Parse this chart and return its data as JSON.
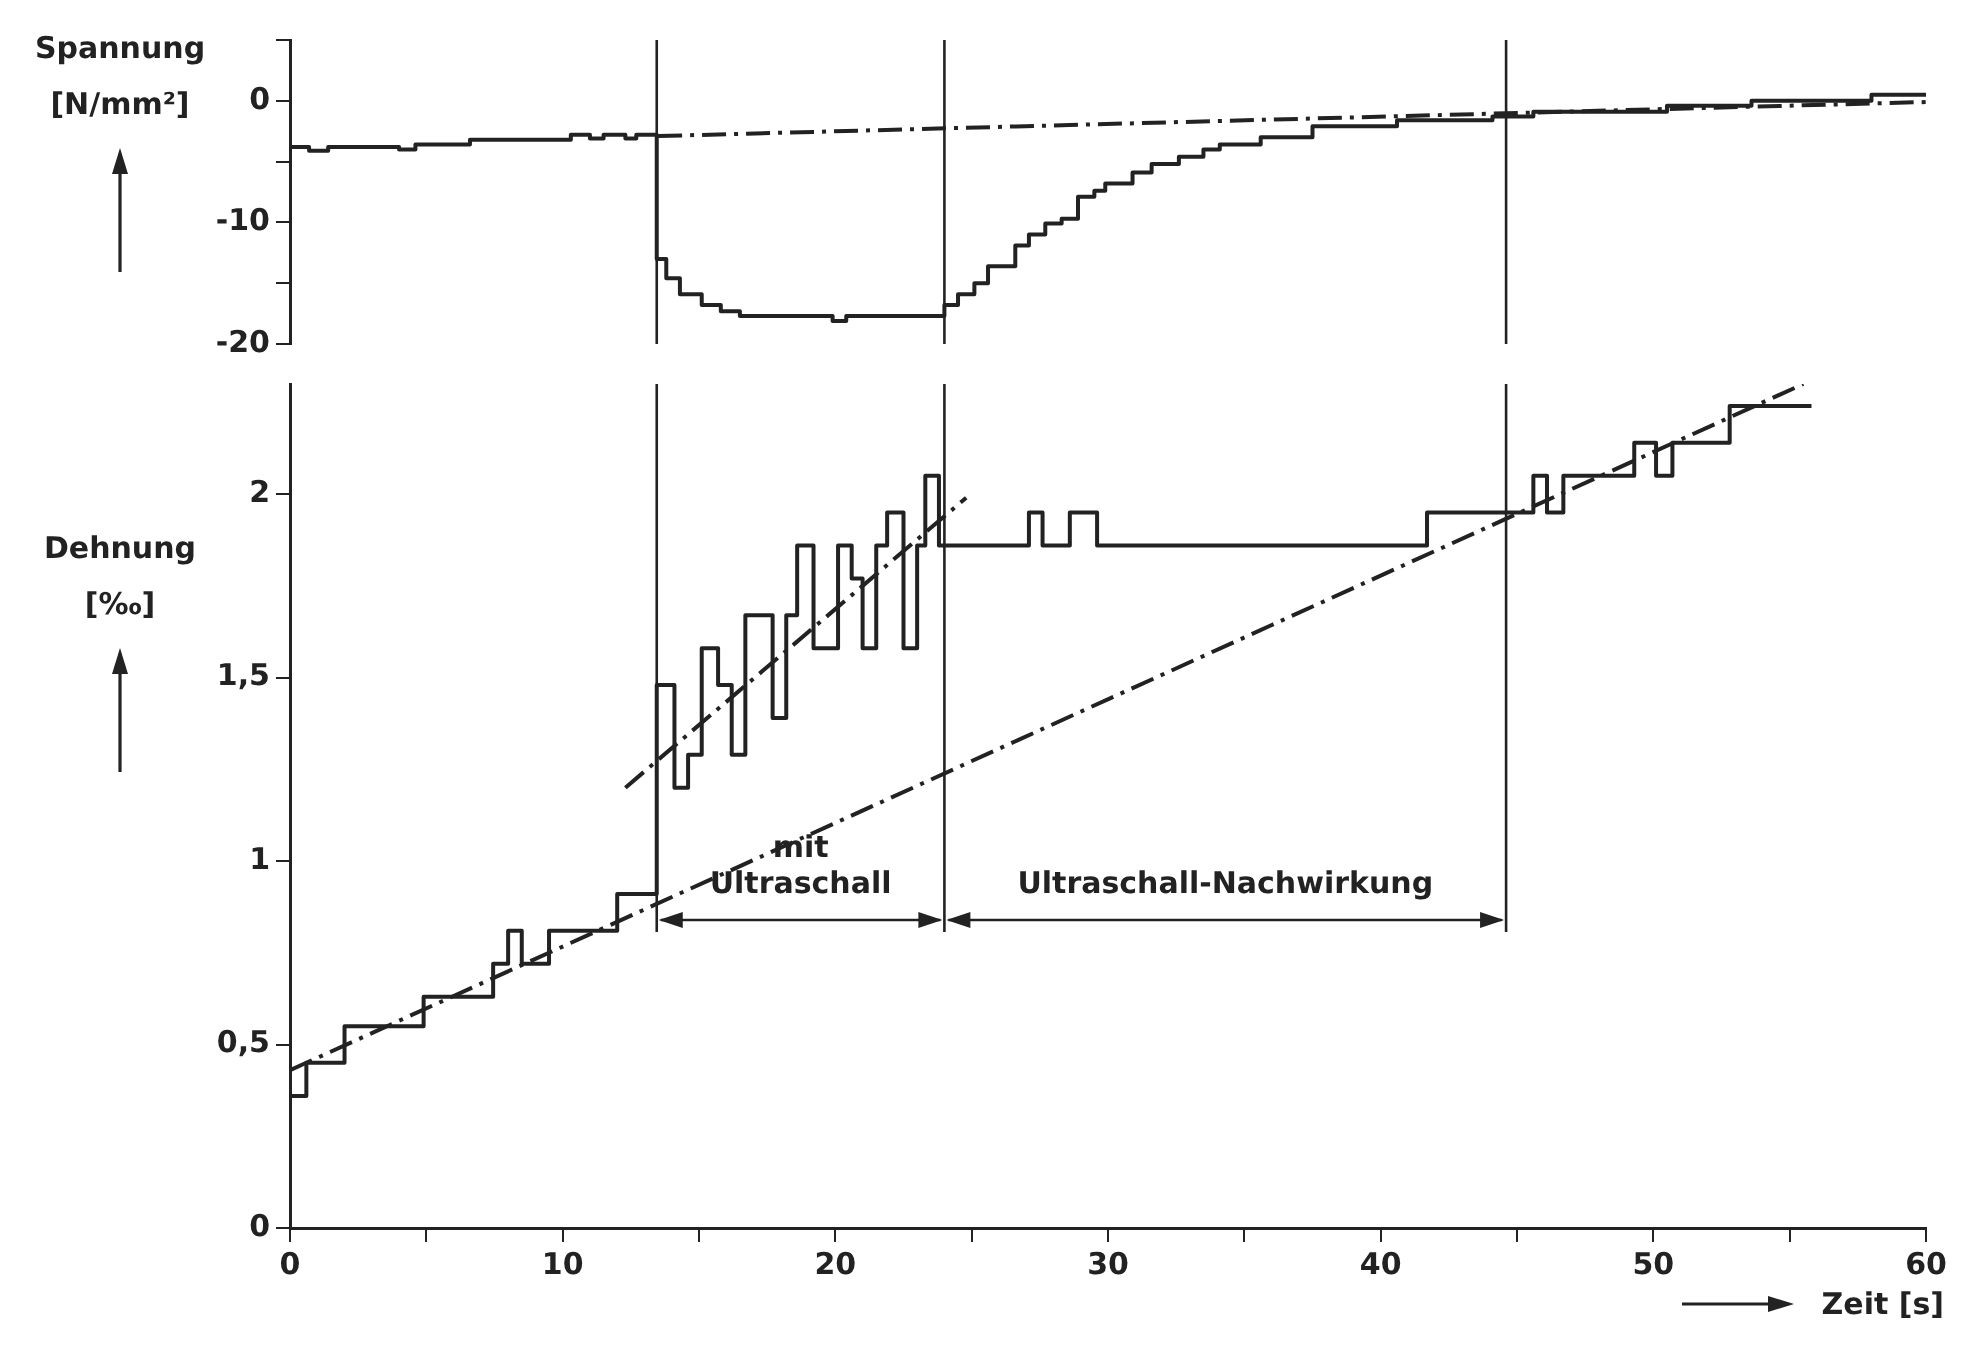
{
  "chart_data": [
    {
      "type": "step",
      "ylabel": "Spannung [N/mm²]",
      "xlim": [
        0,
        60
      ],
      "ylim": [
        -20,
        5
      ],
      "yticks": [
        {
          "value": 5,
          "label": null
        },
        0,
        {
          "value": -5,
          "label": null
        },
        -10,
        {
          "value": -15,
          "label": null
        },
        -20
      ],
      "tick_labels": "y",
      "marker": "none",
      "legend": false,
      "series": [
        {
          "color": "#222222",
          "x": [
            0,
            0.7,
            1.4,
            4.0,
            4.6,
            6.6,
            10.3,
            11.0,
            11.5,
            12.3,
            12.7,
            13.45,
            13.8,
            14.3,
            15.1,
            15.8,
            16.5,
            19.9,
            20.4,
            24.0,
            24.5,
            25.1,
            25.6,
            26.6,
            27.1,
            27.7,
            28.3,
            28.9,
            29.5,
            29.9,
            30.9,
            31.6,
            32.6,
            33.5,
            34.1,
            35.6,
            37.5,
            40.6,
            44.1,
            45.6,
            50.5,
            53.6,
            58,
            60
          ],
          "values": [
            -3.8,
            -4.1,
            -3.8,
            -4.0,
            -3.6,
            -3.2,
            -2.8,
            -3.1,
            -2.8,
            -3.1,
            -2.8,
            -13.0,
            -14.6,
            -15.9,
            -16.8,
            -17.3,
            -17.7,
            -18.1,
            -17.7,
            -16.8,
            -15.9,
            -15.0,
            -13.6,
            -11.9,
            -11.0,
            -10.1,
            -9.7,
            -7.9,
            -7.4,
            -6.8,
            -5.9,
            -5.2,
            -4.6,
            -4.0,
            -3.6,
            -3.0,
            -2.1,
            -1.6,
            -1.3,
            -0.9,
            -0.4,
            0,
            0.5,
            0.5
          ]
        },
        {
          "type": "line",
          "line_style": "dashed",
          "color": "#222222",
          "x": [
            13.5,
            60
          ],
          "values": [
            -2.9,
            -0.1
          ]
        }
      ],
      "ref_lines": [
        {
          "axis": "x",
          "value": 13.45
        },
        {
          "axis": "x",
          "value": 24.0
        },
        {
          "axis": "x",
          "value": 44.6
        }
      ]
    },
    {
      "type": "step",
      "ylabel": "Dehnung [‰]",
      "xlabel": "Zeit [s]",
      "xlim": [
        0,
        60
      ],
      "ylim": [
        0,
        2.3
      ],
      "xticks": [
        0,
        {
          "value": 5,
          "label": null
        },
        10,
        {
          "value": 15,
          "label": null
        },
        20,
        {
          "value": 25,
          "label": null
        },
        30,
        {
          "value": 35,
          "label": null
        },
        40,
        {
          "value": 45,
          "label": null
        },
        50,
        {
          "value": 55,
          "label": null
        },
        60
      ],
      "yticks": [
        0,
        {
          "value": 0.5,
          "label": "0,5"
        },
        1,
        {
          "value": 1.5,
          "label": "1,5"
        },
        2
      ],
      "marker": "none",
      "legend": false,
      "series": [
        {
          "color": "#222222",
          "x": [
            0,
            0.6,
            2.0,
            4.9,
            7.45,
            8.0,
            8.5,
            9.5,
            12.0,
            13.45,
            14.1,
            14.6,
            15.1,
            15.7,
            16.2,
            16.7,
            17.7,
            18.2,
            18.6,
            19.2,
            20.1,
            20.6,
            21.0,
            21.5,
            21.9,
            22.5,
            23.0,
            23.3,
            23.8,
            27.1,
            27.6,
            28.6,
            29.6,
            41.7,
            45.6,
            46.1,
            46.7,
            49.3,
            50.1,
            50.7,
            52.8,
            55.8
          ],
          "values": [
            0.36,
            0.45,
            0.55,
            0.63,
            0.72,
            0.81,
            0.72,
            0.81,
            0.91,
            1.48,
            1.2,
            1.29,
            1.58,
            1.48,
            1.29,
            1.67,
            1.39,
            1.67,
            1.86,
            1.58,
            1.86,
            1.77,
            1.58,
            1.86,
            1.95,
            1.58,
            1.86,
            2.05,
            1.86,
            1.95,
            1.86,
            1.95,
            1.86,
            1.95,
            2.05,
            1.95,
            2.05,
            2.14,
            2.05,
            2.14,
            2.24,
            2.24
          ]
        },
        {
          "type": "line",
          "line_style": "dashed",
          "color": "#222222",
          "x": [
            0,
            55.5
          ],
          "values": [
            0.43,
            2.3
          ]
        },
        {
          "type": "line",
          "line_style": "dashed",
          "color": "#222222",
          "x": [
            12.3,
            24.8
          ],
          "values": [
            1.2,
            1.99
          ]
        }
      ],
      "ref_lines": [
        {
          "axis": "x",
          "value": 13.45
        },
        {
          "axis": "x",
          "value": 24.0
        },
        {
          "axis": "x",
          "value": 44.6
        }
      ],
      "annotations": [
        "mit Ultraschall",
        "Ultraschall-Nachwirkung"
      ]
    }
  ]
}
